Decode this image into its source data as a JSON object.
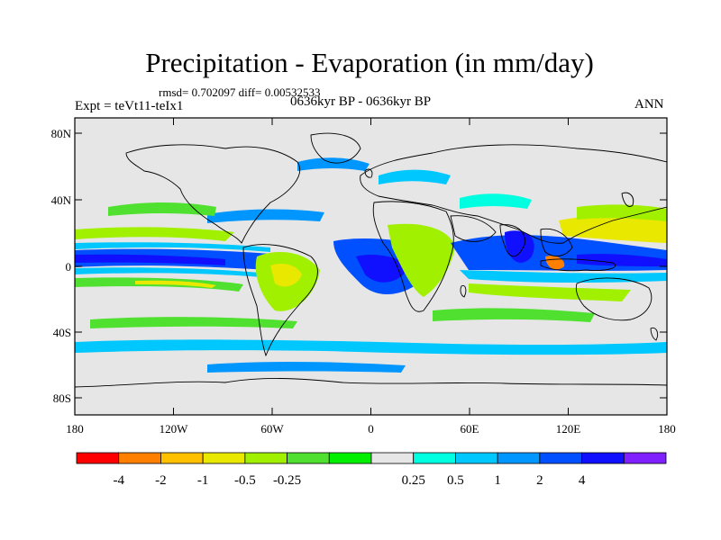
{
  "title": "Precipitation - Evaporation (in mm/day)",
  "stats": "rmsd= 0.702097 diff= 0.00532533",
  "experiment": "Expt = teVt11-teIx1",
  "period": "0636kyr BP - 0636kyr BP",
  "season": "ANN",
  "lat_ticks": [
    "80N",
    "40N",
    "0",
    "40S",
    "80S"
  ],
  "lon_ticks": [
    "180",
    "120W",
    "60W",
    "0",
    "60E",
    "120E",
    "180"
  ],
  "colorbar": {
    "colors": [
      "#ff0000",
      "#ff8000",
      "#ffc000",
      "#e8e800",
      "#a0f000",
      "#50e030",
      "#00f000",
      "#e6e6e6",
      "#00ffe0",
      "#00c8ff",
      "#0096ff",
      "#0050ff",
      "#1010ff",
      "#8020ff"
    ],
    "labels": [
      "-4",
      "-2",
      "-1",
      "-0.5",
      "-0.25",
      "0.25",
      "0.5",
      "1",
      "2",
      "4"
    ]
  }
}
